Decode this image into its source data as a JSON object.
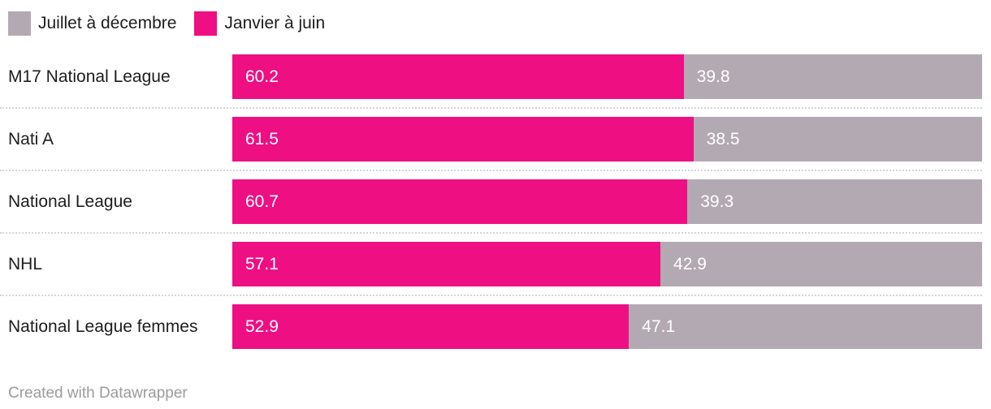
{
  "colors": {
    "janvier_pink": "#ee0f83",
    "juillet_gray": "#b3a9b3",
    "label_text": "#1d1d1d",
    "value_text": "#ffffff",
    "separator": "#d5d5d5",
    "credit_text": "#9b9b9b",
    "background": "#ffffff"
  },
  "legend": [
    {
      "label": "Juillet à décembre",
      "color": "#b3a9b3"
    },
    {
      "label": "Janvier à juin",
      "color": "#ee0f83"
    }
  ],
  "chart_data": {
    "type": "bar",
    "stacked": true,
    "orientation": "horizontal",
    "title": "",
    "xlabel": "",
    "ylabel": "",
    "xlim": [
      0,
      100
    ],
    "grid": false,
    "legend_position": "top",
    "value_labels": true,
    "categories": [
      "M17 National League",
      "Nati A",
      "National League",
      "NHL",
      "National League femmes"
    ],
    "series": [
      {
        "name": "Janvier à juin",
        "color": "#ee0f83",
        "values": [
          60.2,
          61.5,
          60.7,
          57.1,
          52.9
        ]
      },
      {
        "name": "Juillet à décembre",
        "color": "#b3a9b3",
        "values": [
          39.8,
          38.5,
          39.3,
          42.9,
          47.1
        ]
      }
    ]
  },
  "footer": {
    "credit": "Created with Datawrapper"
  }
}
